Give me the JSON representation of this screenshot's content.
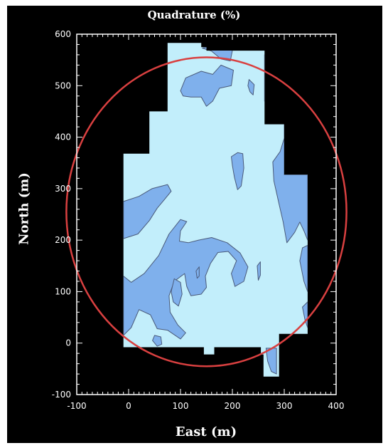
{
  "chart_data": {
    "type": "contour",
    "title": "Quadrature (%)",
    "xlabel": "East (m)",
    "ylabel": "North  (m)",
    "xlim": [
      -100,
      400
    ],
    "ylim": [
      -100,
      600
    ],
    "xticks": [
      -100,
      0,
      100,
      200,
      300,
      400
    ],
    "yticks": [
      -100,
      0,
      100,
      200,
      300,
      400,
      500,
      600
    ],
    "grid": false,
    "colors": {
      "background": "#000000",
      "base_fill": "#c2eefb",
      "contour_fill": "#7fb0ec",
      "contour_line": "#4a5a7a",
      "circle": "#d94040",
      "axes": "#ffffff"
    },
    "survey_outline": [
      [
        -10,
        -8
      ],
      [
        145,
        -8
      ],
      [
        145,
        -22
      ],
      [
        165,
        -22
      ],
      [
        165,
        -8
      ],
      [
        255,
        -8
      ],
      [
        255,
        -22
      ],
      [
        260,
        -22
      ],
      [
        260,
        -65
      ],
      [
        290,
        -65
      ],
      [
        290,
        18
      ],
      [
        345,
        18
      ],
      [
        345,
        327
      ],
      [
        300,
        327
      ],
      [
        300,
        425
      ],
      [
        262,
        425
      ],
      [
        262,
        568
      ],
      [
        150,
        568
      ],
      [
        150,
        575
      ],
      [
        140,
        575
      ],
      [
        140,
        583
      ],
      [
        75,
        583
      ],
      [
        75,
        450
      ],
      [
        40,
        450
      ],
      [
        40,
        368
      ],
      [
        -10,
        368
      ]
    ],
    "contour_regions": [
      [
        [
          -10,
          275
        ],
        [
          20,
          285
        ],
        [
          45,
          300
        ],
        [
          75,
          308
        ],
        [
          82,
          295
        ],
        [
          70,
          280
        ],
        [
          55,
          262
        ],
        [
          40,
          238
        ],
        [
          18,
          212
        ],
        [
          -10,
          203
        ]
      ],
      [
        [
          -10,
          130
        ],
        [
          5,
          118
        ],
        [
          30,
          135
        ],
        [
          58,
          170
        ],
        [
          78,
          212
        ],
        [
          100,
          240
        ],
        [
          112,
          236
        ],
        [
          100,
          218
        ],
        [
          98,
          198
        ],
        [
          115,
          195
        ],
        [
          135,
          200
        ],
        [
          160,
          205
        ],
        [
          190,
          195
        ],
        [
          215,
          175
        ],
        [
          230,
          148
        ],
        [
          222,
          120
        ],
        [
          205,
          110
        ],
        [
          198,
          135
        ],
        [
          208,
          160
        ],
        [
          192,
          178
        ],
        [
          172,
          176
        ],
        [
          158,
          155
        ],
        [
          148,
          130
        ],
        [
          150,
          108
        ],
        [
          140,
          95
        ],
        [
          120,
          92
        ],
        [
          112,
          110
        ],
        [
          108,
          135
        ],
        [
          88,
          120
        ],
        [
          78,
          92
        ],
        [
          80,
          60
        ],
        [
          95,
          35
        ],
        [
          110,
          20
        ],
        [
          100,
          8
        ],
        [
          75,
          25
        ],
        [
          55,
          28
        ],
        [
          42,
          55
        ],
        [
          20,
          65
        ],
        [
          5,
          30
        ],
        [
          -10,
          15
        ]
      ],
      [
        [
          88,
          125
        ],
        [
          100,
          118
        ],
        [
          103,
          95
        ],
        [
          96,
          72
        ],
        [
          86,
          80
        ],
        [
          82,
          100
        ]
      ],
      [
        [
          50,
          15
        ],
        [
          62,
          12
        ],
        [
          64,
          -2
        ],
        [
          55,
          -6
        ],
        [
          46,
          5
        ]
      ],
      [
        [
          100,
          490
        ],
        [
          110,
          515
        ],
        [
          140,
          528
        ],
        [
          162,
          522
        ],
        [
          178,
          540
        ],
        [
          202,
          530
        ],
        [
          198,
          500
        ],
        [
          175,
          495
        ],
        [
          162,
          470
        ],
        [
          150,
          460
        ],
        [
          140,
          478
        ],
        [
          120,
          478
        ],
        [
          105,
          480
        ]
      ],
      [
        [
          142,
          573
        ],
        [
          160,
          567
        ],
        [
          178,
          552
        ],
        [
          196,
          548
        ],
        [
          200,
          568
        ],
        [
          180,
          575
        ],
        [
          150,
          575
        ]
      ],
      [
        [
          232,
          512
        ],
        [
          242,
          502
        ],
        [
          240,
          482
        ],
        [
          234,
          488
        ],
        [
          230,
          500
        ]
      ],
      [
        [
          262,
          560
        ],
        [
          262,
          470
        ],
        [
          272,
          480
        ],
        [
          268,
          525
        ],
        [
          270,
          555
        ]
      ],
      [
        [
          198,
          362
        ],
        [
          210,
          370
        ],
        [
          220,
          368
        ],
        [
          222,
          340
        ],
        [
          217,
          305
        ],
        [
          210,
          298
        ],
        [
          204,
          322
        ],
        [
          200,
          345
        ]
      ],
      [
        [
          278,
          352
        ],
        [
          292,
          372
        ],
        [
          300,
          398
        ],
        [
          300,
          425
        ],
        [
          300,
          327
        ],
        [
          345,
          327
        ],
        [
          345,
          200
        ],
        [
          338,
          218
        ],
        [
          330,
          235
        ],
        [
          320,
          215
        ],
        [
          305,
          195
        ],
        [
          298,
          235
        ],
        [
          290,
          270
        ],
        [
          280,
          315
        ]
      ],
      [
        [
          345,
          190
        ],
        [
          335,
          185
        ],
        [
          330,
          160
        ],
        [
          338,
          120
        ],
        [
          345,
          100
        ]
      ],
      [
        [
          345,
          80
        ],
        [
          335,
          70
        ],
        [
          340,
          45
        ],
        [
          345,
          30
        ]
      ],
      [
        [
          248,
          150
        ],
        [
          254,
          158
        ],
        [
          254,
          132
        ],
        [
          250,
          122
        ]
      ],
      [
        [
          130,
          140
        ],
        [
          136,
          148
        ],
        [
          136,
          130
        ],
        [
          132,
          126
        ]
      ],
      [
        [
          265,
          -10
        ],
        [
          285,
          -10
        ],
        [
          285,
          -60
        ],
        [
          275,
          -55
        ],
        [
          268,
          -35
        ]
      ]
    ],
    "circle": {
      "center": [
        150,
        255
      ],
      "radius_x": 270,
      "radius_y": 300
    }
  }
}
